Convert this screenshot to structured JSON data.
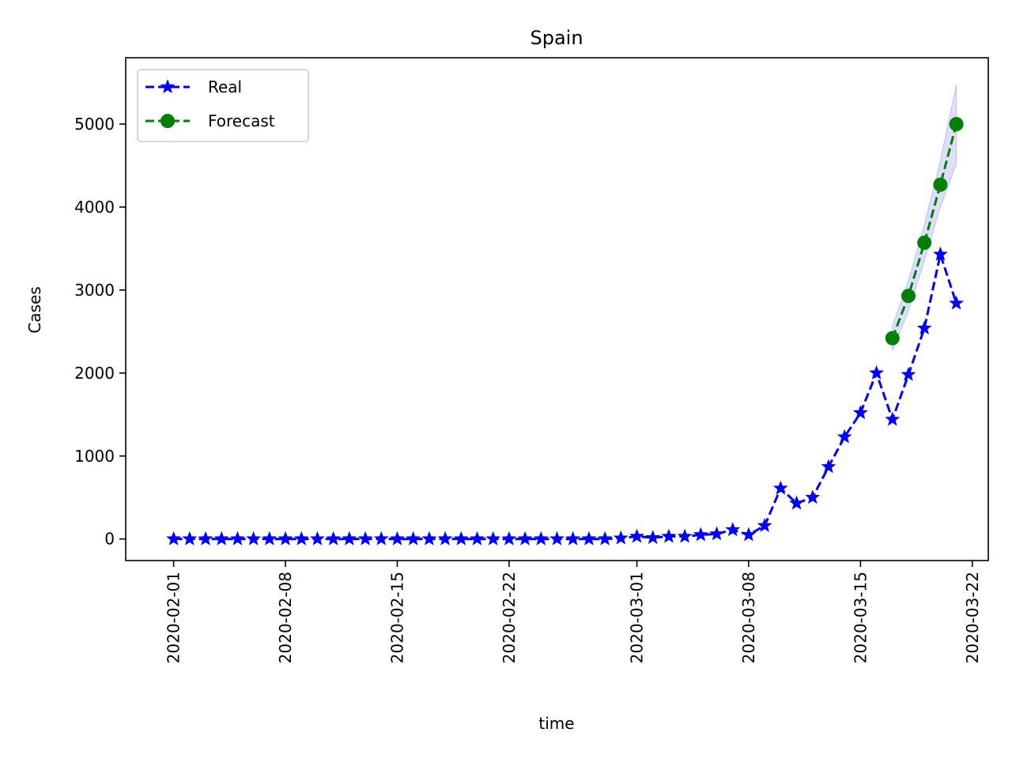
{
  "chart_data": {
    "type": "line",
    "title": "Spain",
    "xlabel": "time",
    "ylabel": "Cases",
    "x_axis_type": "date",
    "xlim": [
      "2020-01-29",
      "2020-03-23"
    ],
    "ylim": [
      -260,
      5800
    ],
    "x_tick_labels": [
      "2020-02-01",
      "2020-02-08",
      "2020-02-15",
      "2020-02-22",
      "2020-03-01",
      "2020-03-08",
      "2020-03-15",
      "2020-03-22"
    ],
    "y_ticks": [
      0,
      1000,
      2000,
      3000,
      4000,
      5000
    ],
    "y_tick_labels": [
      "0",
      "1000",
      "2000",
      "3000",
      "4000",
      "5000"
    ],
    "grid": false,
    "legend_position": "top-left",
    "series": [
      {
        "name": "Real",
        "color": "#0000ff",
        "line_style": "dashed",
        "marker": "star",
        "x": [
          "2020-02-01",
          "2020-02-02",
          "2020-02-03",
          "2020-02-04",
          "2020-02-05",
          "2020-02-06",
          "2020-02-07",
          "2020-02-08",
          "2020-02-09",
          "2020-02-10",
          "2020-02-11",
          "2020-02-12",
          "2020-02-13",
          "2020-02-14",
          "2020-02-15",
          "2020-02-16",
          "2020-02-17",
          "2020-02-18",
          "2020-02-19",
          "2020-02-20",
          "2020-02-21",
          "2020-02-22",
          "2020-02-23",
          "2020-02-24",
          "2020-02-25",
          "2020-02-26",
          "2020-02-27",
          "2020-02-28",
          "2020-02-29",
          "2020-03-01",
          "2020-03-02",
          "2020-03-03",
          "2020-03-04",
          "2020-03-05",
          "2020-03-06",
          "2020-03-07",
          "2020-03-08",
          "2020-03-09",
          "2020-03-10",
          "2020-03-11",
          "2020-03-12",
          "2020-03-13",
          "2020-03-14",
          "2020-03-15",
          "2020-03-16",
          "2020-03-17",
          "2020-03-18",
          "2020-03-19",
          "2020-03-20",
          "2020-03-21"
        ],
        "values": [
          0,
          0,
          0,
          0,
          0,
          0,
          0,
          0,
          0,
          0,
          0,
          0,
          0,
          0,
          0,
          0,
          0,
          0,
          0,
          0,
          0,
          0,
          0,
          0,
          0,
          0,
          0,
          0,
          10,
          30,
          15,
          30,
          30,
          50,
          60,
          110,
          50,
          160,
          610,
          430,
          500,
          870,
          1230,
          1520,
          2000,
          1440,
          1980,
          2540,
          3430,
          2840
        ]
      },
      {
        "name": "Forecast",
        "color": "#008000",
        "line_style": "dashed",
        "marker": "circle",
        "x": [
          "2020-03-17",
          "2020-03-18",
          "2020-03-19",
          "2020-03-20",
          "2020-03-21"
        ],
        "values": [
          2420,
          2930,
          3570,
          4270,
          5000
        ],
        "band_lower": [
          2270,
          2750,
          3350,
          4000,
          4520
        ],
        "band_upper": [
          2570,
          3110,
          3790,
          4560,
          5480
        ],
        "band_color": "#0000ff"
      }
    ]
  }
}
